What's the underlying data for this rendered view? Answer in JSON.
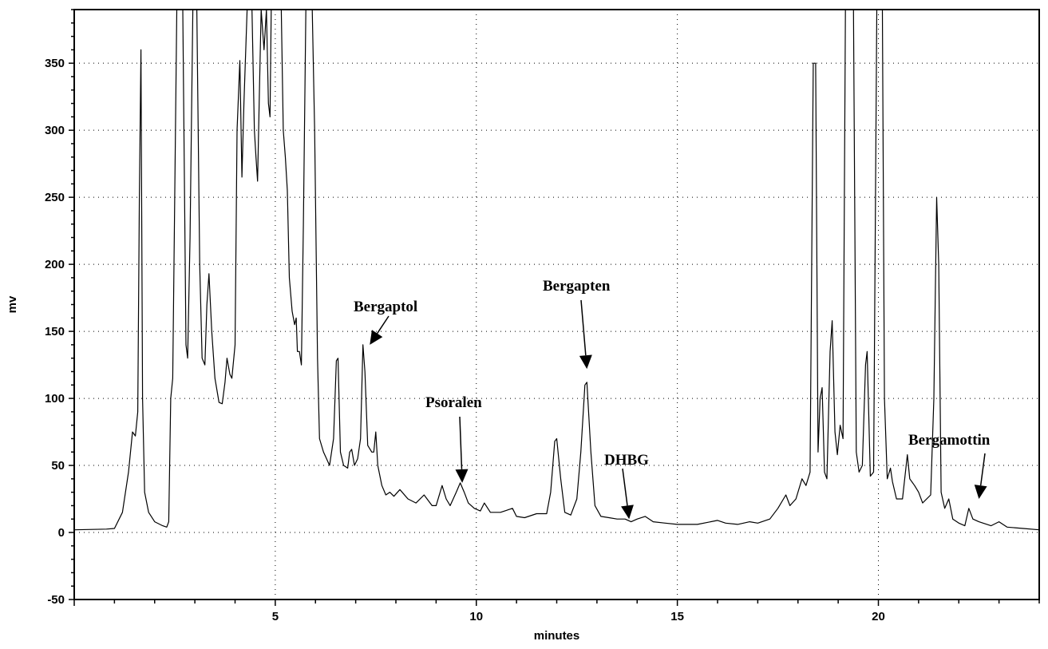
{
  "chart_data": {
    "type": "line",
    "title": "",
    "xlabel": "minutes",
    "ylabel": "mv",
    "xlim": [
      0,
      24
    ],
    "ylim": [
      -50,
      390
    ],
    "x_ticks": [
      5,
      10,
      15,
      20
    ],
    "y_ticks": [
      -50,
      0,
      50,
      100,
      150,
      200,
      250,
      300,
      350
    ],
    "grid": true,
    "series": [
      {
        "points": [
          [
            0,
            2
          ],
          [
            0.8,
            2.5
          ],
          [
            1.0,
            3
          ],
          [
            1.2,
            15
          ],
          [
            1.35,
            45
          ],
          [
            1.45,
            75
          ],
          [
            1.52,
            72
          ],
          [
            1.58,
            90
          ],
          [
            1.62,
            250
          ],
          [
            1.66,
            360
          ],
          [
            1.7,
            100
          ],
          [
            1.75,
            30
          ],
          [
            1.85,
            15
          ],
          [
            2.0,
            8
          ],
          [
            2.2,
            5
          ],
          [
            2.3,
            4
          ],
          [
            2.35,
            8
          ],
          [
            2.4,
            100
          ],
          [
            2.45,
            115
          ],
          [
            2.55,
            390
          ],
          [
            2.7,
            390
          ],
          [
            2.78,
            140
          ],
          [
            2.82,
            130
          ],
          [
            2.88,
            220
          ],
          [
            2.95,
            390
          ],
          [
            3.05,
            390
          ],
          [
            3.12,
            200
          ],
          [
            3.18,
            130
          ],
          [
            3.25,
            125
          ],
          [
            3.3,
            170
          ],
          [
            3.35,
            193
          ],
          [
            3.42,
            150
          ],
          [
            3.5,
            115
          ],
          [
            3.6,
            97
          ],
          [
            3.68,
            96
          ],
          [
            3.75,
            112
          ],
          [
            3.8,
            130
          ],
          [
            3.87,
            118
          ],
          [
            3.92,
            115
          ],
          [
            4.0,
            140
          ],
          [
            4.05,
            300
          ],
          [
            4.12,
            352
          ],
          [
            4.17,
            265
          ],
          [
            4.22,
            320
          ],
          [
            4.3,
            390
          ],
          [
            4.42,
            390
          ],
          [
            4.48,
            300
          ],
          [
            4.52,
            280
          ],
          [
            4.56,
            262
          ],
          [
            4.6,
            320
          ],
          [
            4.65,
            390
          ],
          [
            4.72,
            360
          ],
          [
            4.78,
            390
          ],
          [
            4.83,
            320
          ],
          [
            4.87,
            310
          ],
          [
            4.9,
            390
          ],
          [
            5.15,
            390
          ],
          [
            5.2,
            300
          ],
          [
            5.25,
            280
          ],
          [
            5.3,
            255
          ],
          [
            5.35,
            190
          ],
          [
            5.42,
            165
          ],
          [
            5.48,
            155
          ],
          [
            5.52,
            160
          ],
          [
            5.55,
            135
          ],
          [
            5.6,
            135
          ],
          [
            5.65,
            125
          ],
          [
            5.7,
            230
          ],
          [
            5.76,
            390
          ],
          [
            5.92,
            390
          ],
          [
            5.98,
            300
          ],
          [
            6.05,
            130
          ],
          [
            6.1,
            70
          ],
          [
            6.2,
            60
          ],
          [
            6.35,
            50
          ],
          [
            6.45,
            70
          ],
          [
            6.52,
            128
          ],
          [
            6.56,
            130
          ],
          [
            6.62,
            60
          ],
          [
            6.7,
            50
          ],
          [
            6.8,
            48
          ],
          [
            6.85,
            60
          ],
          [
            6.9,
            62
          ],
          [
            6.97,
            50
          ],
          [
            7.05,
            55
          ],
          [
            7.12,
            70
          ],
          [
            7.18,
            140
          ],
          [
            7.23,
            120
          ],
          [
            7.3,
            65
          ],
          [
            7.4,
            60
          ],
          [
            7.45,
            60
          ],
          [
            7.5,
            75
          ],
          [
            7.55,
            50
          ],
          [
            7.65,
            35
          ],
          [
            7.75,
            28
          ],
          [
            7.85,
            30
          ],
          [
            7.95,
            27
          ],
          [
            8.1,
            32
          ],
          [
            8.3,
            25
          ],
          [
            8.5,
            22
          ],
          [
            8.7,
            28
          ],
          [
            8.9,
            20
          ],
          [
            9.0,
            20
          ],
          [
            9.15,
            35
          ],
          [
            9.25,
            25
          ],
          [
            9.35,
            20
          ],
          [
            9.5,
            30
          ],
          [
            9.6,
            37
          ],
          [
            9.7,
            30
          ],
          [
            9.8,
            22
          ],
          [
            9.95,
            18
          ],
          [
            10.1,
            16
          ],
          [
            10.2,
            22
          ],
          [
            10.35,
            15
          ],
          [
            10.6,
            15
          ],
          [
            10.9,
            18
          ],
          [
            11.0,
            12
          ],
          [
            11.2,
            11
          ],
          [
            11.5,
            14
          ],
          [
            11.75,
            14
          ],
          [
            11.85,
            30
          ],
          [
            11.95,
            68
          ],
          [
            12.0,
            70
          ],
          [
            12.1,
            40
          ],
          [
            12.2,
            15
          ],
          [
            12.35,
            13
          ],
          [
            12.5,
            25
          ],
          [
            12.6,
            60
          ],
          [
            12.7,
            110
          ],
          [
            12.75,
            112
          ],
          [
            12.85,
            60
          ],
          [
            12.95,
            20
          ],
          [
            13.1,
            12
          ],
          [
            13.3,
            11
          ],
          [
            13.5,
            10
          ],
          [
            13.7,
            10
          ],
          [
            13.85,
            8
          ],
          [
            14.0,
            10
          ],
          [
            14.2,
            12
          ],
          [
            14.4,
            8
          ],
          [
            14.7,
            7
          ],
          [
            15.0,
            6
          ],
          [
            15.5,
            6
          ],
          [
            16.0,
            9
          ],
          [
            16.2,
            7
          ],
          [
            16.5,
            6
          ],
          [
            16.8,
            8
          ],
          [
            17.0,
            7
          ],
          [
            17.3,
            10
          ],
          [
            17.5,
            18
          ],
          [
            17.7,
            28
          ],
          [
            17.8,
            20
          ],
          [
            17.95,
            25
          ],
          [
            18.1,
            40
          ],
          [
            18.2,
            35
          ],
          [
            18.3,
            45
          ],
          [
            18.38,
            350
          ],
          [
            18.44,
            350
          ],
          [
            18.5,
            60
          ],
          [
            18.55,
            100
          ],
          [
            18.6,
            108
          ],
          [
            18.66,
            45
          ],
          [
            18.72,
            40
          ],
          [
            18.8,
            135
          ],
          [
            18.85,
            158
          ],
          [
            18.92,
            75
          ],
          [
            18.98,
            58
          ],
          [
            19.05,
            80
          ],
          [
            19.12,
            70
          ],
          [
            19.18,
            390
          ],
          [
            19.38,
            390
          ],
          [
            19.45,
            60
          ],
          [
            19.52,
            45
          ],
          [
            19.6,
            50
          ],
          [
            19.68,
            125
          ],
          [
            19.72,
            135
          ],
          [
            19.8,
            42
          ],
          [
            19.88,
            45
          ],
          [
            19.96,
            390
          ],
          [
            20.1,
            390
          ],
          [
            20.15,
            100
          ],
          [
            20.22,
            40
          ],
          [
            20.3,
            48
          ],
          [
            20.35,
            38
          ],
          [
            20.45,
            25
          ],
          [
            20.6,
            25
          ],
          [
            20.72,
            58
          ],
          [
            20.78,
            40
          ],
          [
            20.9,
            35
          ],
          [
            21.0,
            30
          ],
          [
            21.1,
            22
          ],
          [
            21.3,
            28
          ],
          [
            21.38,
            100
          ],
          [
            21.45,
            250
          ],
          [
            21.5,
            200
          ],
          [
            21.56,
            30
          ],
          [
            21.65,
            18
          ],
          [
            21.75,
            25
          ],
          [
            21.85,
            10
          ],
          [
            22.0,
            7
          ],
          [
            22.15,
            5
          ],
          [
            22.25,
            18
          ],
          [
            22.35,
            10
          ],
          [
            22.5,
            8
          ],
          [
            22.8,
            5
          ],
          [
            23.0,
            8
          ],
          [
            23.2,
            4
          ],
          [
            23.6,
            3
          ],
          [
            24.0,
            2
          ]
        ]
      }
    ],
    "annotations": [
      {
        "text": "Bergaptol",
        "arrow_tip": [
          7.35,
          140
        ]
      },
      {
        "text": "Psoralen",
        "arrow_tip": [
          9.65,
          37
        ]
      },
      {
        "text": "Bergapten",
        "arrow_tip": [
          12.75,
          122
        ]
      },
      {
        "text": "DHBG",
        "arrow_tip": [
          13.8,
          10
        ]
      },
      {
        "text": "Bergamottin",
        "arrow_tip": [
          22.5,
          25
        ]
      }
    ]
  }
}
